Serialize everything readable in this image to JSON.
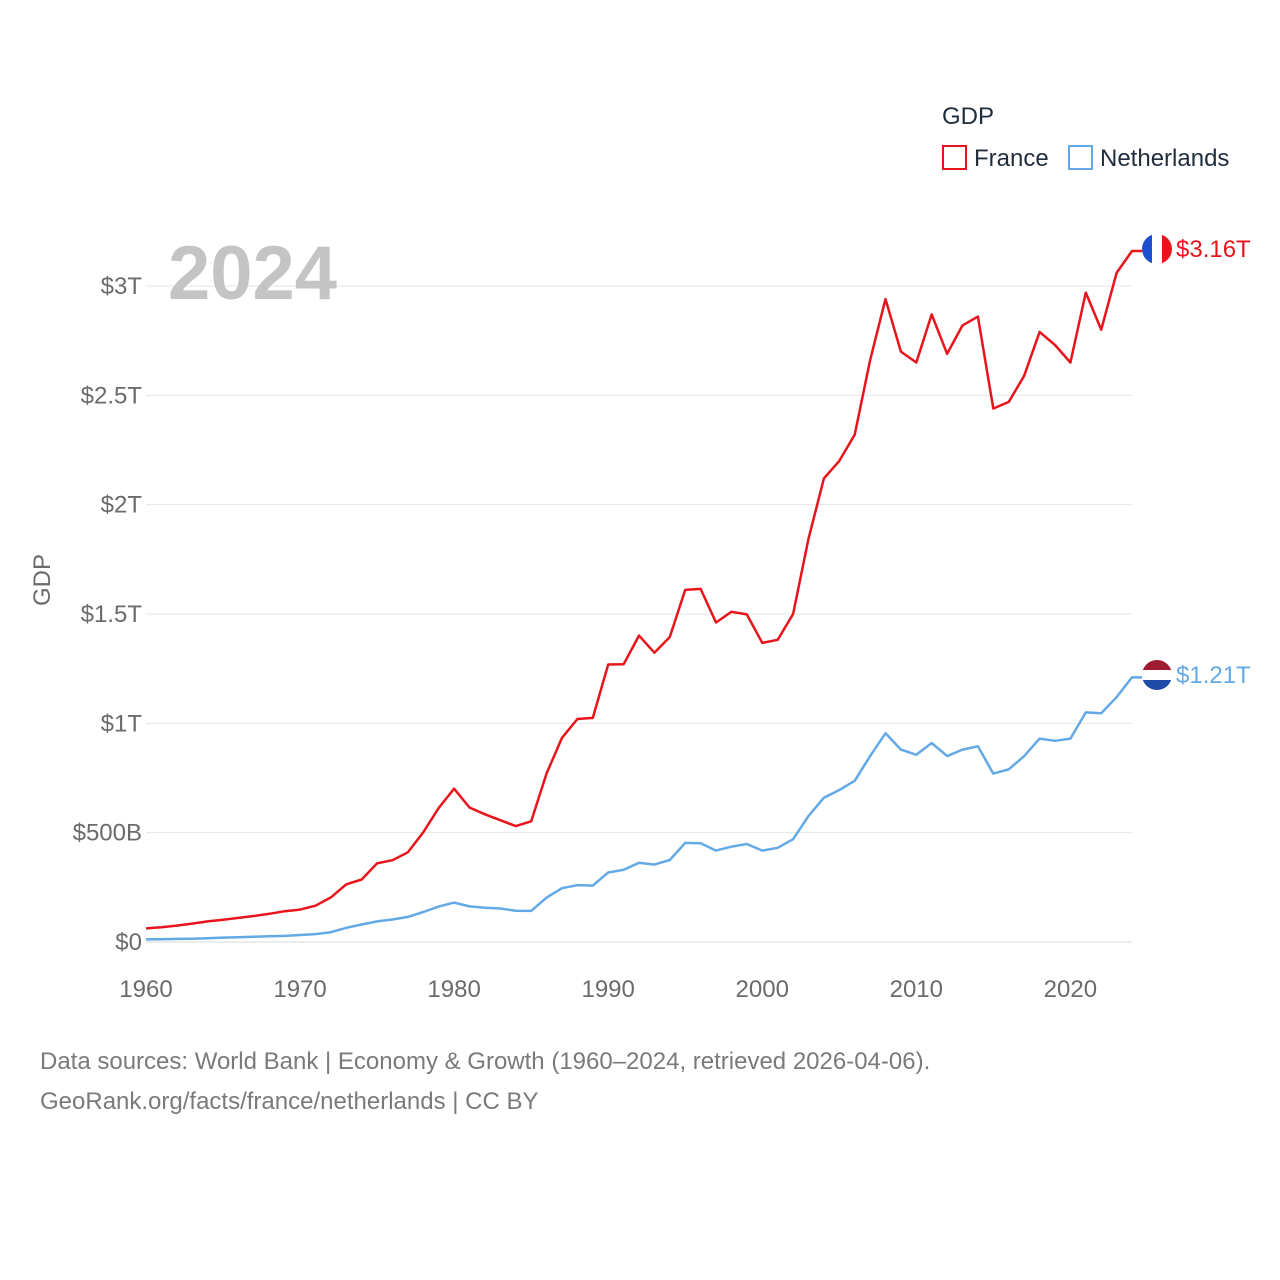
{
  "chart_data": {
    "type": "line",
    "year_label": "2024",
    "ylabel": "GDP",
    "ylim": [
      0,
      3300000000000
    ],
    "xlim": [
      1960,
      2024
    ],
    "y_ticks": [
      {
        "value": 0,
        "label": "$0"
      },
      {
        "value": 500000000000,
        "label": "$500B"
      },
      {
        "value": 1000000000000,
        "label": "$1T"
      },
      {
        "value": 1500000000000,
        "label": "$1.5T"
      },
      {
        "value": 2000000000000,
        "label": "$2T"
      },
      {
        "value": 2500000000000,
        "label": "$2.5T"
      },
      {
        "value": 3000000000000,
        "label": "$3T"
      }
    ],
    "x_ticks": [
      {
        "value": 1960,
        "label": "1960"
      },
      {
        "value": 1970,
        "label": "1970"
      },
      {
        "value": 1980,
        "label": "1980"
      },
      {
        "value": 1990,
        "label": "1990"
      },
      {
        "value": 2000,
        "label": "2000"
      },
      {
        "value": 2010,
        "label": "2010"
      },
      {
        "value": 2020,
        "label": "2020"
      }
    ],
    "legend_title": "GDP",
    "legend_position": "top-right",
    "x": [
      1960,
      1961,
      1962,
      1963,
      1964,
      1965,
      1966,
      1967,
      1968,
      1969,
      1970,
      1971,
      1972,
      1973,
      1974,
      1975,
      1976,
      1977,
      1978,
      1979,
      1980,
      1981,
      1982,
      1983,
      1984,
      1985,
      1986,
      1987,
      1988,
      1989,
      1990,
      1991,
      1992,
      1993,
      1994,
      1995,
      1996,
      1997,
      1998,
      1999,
      2000,
      2001,
      2002,
      2003,
      2004,
      2005,
      2006,
      2007,
      2008,
      2009,
      2010,
      2011,
      2012,
      2013,
      2014,
      2015,
      2016,
      2017,
      2018,
      2019,
      2020,
      2021,
      2022,
      2023,
      2024
    ],
    "series": [
      {
        "name": "France",
        "color": "#e8141c",
        "end_label": "$3.16T",
        "flag": "france",
        "values": [
          62,
          67,
          75,
          84,
          94,
          102,
          110,
          119,
          129,
          141,
          148,
          166,
          204,
          264,
          286,
          360,
          374,
          410,
          502,
          613,
          701,
          615,
          584,
          557,
          530,
          552,
          771,
          934,
          1020,
          1025,
          1269,
          1270,
          1401,
          1323,
          1395,
          1610,
          1615,
          1461,
          1510,
          1498,
          1368,
          1382,
          1500,
          1844,
          2120,
          2200,
          2320,
          2660,
          2940,
          2700,
          2650,
          2870,
          2690,
          2820,
          2860,
          2440,
          2470,
          2590,
          2790,
          2730,
          2650,
          2970,
          2800,
          3060,
          3160
        ]
      },
      {
        "name": "Netherlands",
        "color": "#63a9e6",
        "end_label": "$1.21T",
        "flag": "netherlands",
        "values": [
          12,
          13,
          14,
          15,
          17,
          20,
          22,
          24,
          26,
          28,
          32,
          36,
          45,
          65,
          80,
          94,
          103,
          115,
          137,
          162,
          180,
          163,
          157,
          153,
          143,
          142,
          203,
          246,
          260,
          258,
          318,
          330,
          362,
          354,
          375,
          453,
          452,
          418,
          436,
          448,
          418,
          431,
          470,
          576,
          660,
          695,
          737,
          850,
          955,
          880,
          856,
          910,
          850,
          880,
          895,
          770,
          790,
          850,
          930,
          920,
          930,
          1050,
          1046,
          1120,
          1210
        ]
      }
    ]
  },
  "footer": {
    "line1": "Data sources: World Bank | Economy & Growth (1960–2024, retrieved 2026-04-06).",
    "line2": "GeoRank.org/facts/france/netherlands | CC BY"
  }
}
